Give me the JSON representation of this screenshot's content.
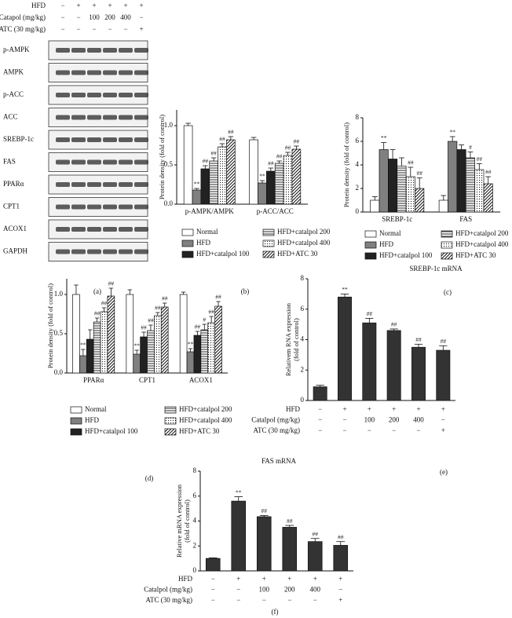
{
  "blot": {
    "conditions": [
      {
        "label": "HFD",
        "values": [
          "−",
          "+",
          "+",
          "+",
          "+",
          "+"
        ]
      },
      {
        "label": "Catapol (mg/kg)",
        "values": [
          "−",
          "−",
          "100",
          "200",
          "400",
          "−"
        ]
      },
      {
        "label": "ATC (30 mg/kg)",
        "values": [
          "−",
          "−",
          "−",
          "−",
          "−",
          "+"
        ]
      }
    ],
    "bands": [
      "p-AMPK",
      "AMPK",
      "p-ACC",
      "ACC",
      "SREBP-1c",
      "FAS",
      "PPARα",
      "CPT1",
      "ACOX1",
      "GAPDH"
    ],
    "panel_label": "(a)"
  },
  "chart_data": [
    {
      "type": "bar",
      "panel_label": "(b)",
      "ylabel": [
        "Protein density (fold of control)"
      ],
      "categories": [
        "p-AMPK/AMPK",
        "p-ACC/ACC"
      ],
      "ylim": [
        0,
        1.2
      ],
      "yticks": [
        {
          "value": 0,
          "label": "0.0"
        },
        {
          "value": 0.5,
          "label": "0.5"
        },
        {
          "value": 1,
          "label": "1.0"
        }
      ],
      "series": [
        {
          "name": "Normal",
          "color": "#ffffff",
          "values": [
            1.0,
            0.82
          ],
          "errors": [
            0.03,
            0.03
          ],
          "annotations": [
            null,
            null
          ]
        },
        {
          "name": "HFD",
          "color": "#808080",
          "values": [
            0.18,
            0.27
          ],
          "errors": [
            0.02,
            0.03
          ],
          "annotations": [
            "**",
            "**"
          ]
        },
        {
          "name": "HFD+catalpol 100",
          "color": "#222222",
          "values": [
            0.45,
            0.42
          ],
          "errors": [
            0.04,
            0.04
          ],
          "annotations": [
            "##",
            "##"
          ]
        },
        {
          "name": "HFD+catalpol 200",
          "color": "#ffffff",
          "pattern": "horizontal",
          "values": [
            0.55,
            0.52
          ],
          "errors": [
            0.04,
            0.03
          ],
          "annotations": [
            "##",
            "##"
          ]
        },
        {
          "name": "HFD+catalpol 400",
          "color": "#ffffff",
          "pattern": "dots",
          "values": [
            0.73,
            0.62
          ],
          "errors": [
            0.04,
            0.04
          ],
          "annotations": [
            "##",
            "##"
          ]
        },
        {
          "name": "HFD+ATC 30",
          "color": "#ffffff",
          "pattern": "diagonal",
          "values": [
            0.82,
            0.7
          ],
          "errors": [
            0.04,
            0.04
          ],
          "annotations": [
            "##",
            "##"
          ]
        }
      ]
    },
    {
      "type": "bar",
      "panel_label": "(c)",
      "ylabel": [
        "Protein density (fold of control)"
      ],
      "categories": [
        "SREBP-1c",
        "FAS"
      ],
      "ylim": [
        0,
        8
      ],
      "yticks": [
        0,
        2,
        4,
        6,
        8
      ],
      "series": [
        {
          "name": "Normal",
          "color": "#ffffff",
          "values": [
            1.0,
            1.0
          ],
          "errors": [
            0.3,
            0.4
          ],
          "annotations": [
            null,
            null
          ]
        },
        {
          "name": "HFD",
          "color": "#808080",
          "values": [
            5.3,
            6.0
          ],
          "errors": [
            0.6,
            0.4
          ],
          "annotations": [
            "**",
            "**"
          ]
        },
        {
          "name": "HFD+catalpol 100",
          "color": "#222222",
          "values": [
            4.5,
            5.3
          ],
          "errors": [
            0.8,
            0.4
          ],
          "annotations": [
            null,
            null
          ]
        },
        {
          "name": "HFD+catalpol 200",
          "color": "#ffffff",
          "pattern": "horizontal",
          "values": [
            3.9,
            4.6
          ],
          "errors": [
            0.7,
            0.5
          ],
          "annotations": [
            null,
            "#"
          ]
        },
        {
          "name": "HFD+catalpol 400",
          "color": "#ffffff",
          "pattern": "dots",
          "values": [
            3.0,
            3.6
          ],
          "errors": [
            0.8,
            0.5
          ],
          "annotations": [
            "##",
            "##"
          ]
        },
        {
          "name": "HFD+ATC 30",
          "color": "#ffffff",
          "pattern": "diagonal",
          "values": [
            2.0,
            2.4
          ],
          "errors": [
            0.9,
            0.6
          ],
          "annotations": [
            "##",
            "##"
          ]
        }
      ]
    },
    {
      "type": "bar",
      "panel_label": "(d)",
      "ylabel": [
        "Protein density (fold of control)"
      ],
      "categories": [
        "PPARα",
        "CPT1",
        "ACOX1"
      ],
      "ylim": [
        0,
        1.2
      ],
      "yticks": [
        {
          "value": 0,
          "label": "0.0"
        },
        {
          "value": 0.5,
          "label": "0.5"
        },
        {
          "value": 1,
          "label": "1.0"
        }
      ],
      "series": [
        {
          "name": "Normal",
          "color": "#ffffff",
          "values": [
            1.0,
            1.0,
            1.0
          ],
          "errors": [
            0.12,
            0.06,
            0.03
          ],
          "annotations": [
            null,
            null,
            null
          ]
        },
        {
          "name": "HFD",
          "color": "#808080",
          "values": [
            0.22,
            0.24,
            0.27
          ],
          "errors": [
            0.08,
            0.05,
            0.04
          ],
          "annotations": [
            "**",
            "**",
            "**"
          ]
        },
        {
          "name": "HFD+catalpol 100",
          "color": "#222222",
          "values": [
            0.43,
            0.46,
            0.48
          ],
          "errors": [
            0.12,
            0.06,
            0.05
          ],
          "annotations": [
            null,
            "##",
            "##"
          ]
        },
        {
          "name": "HFD+catalpol 200",
          "color": "#ffffff",
          "pattern": "horizontal",
          "values": [
            0.65,
            0.54,
            0.55
          ],
          "errors": [
            0.05,
            0.07,
            0.07
          ],
          "annotations": [
            "##",
            "##",
            "#"
          ]
        },
        {
          "name": "HFD+catalpol 400",
          "color": "#ffffff",
          "pattern": "dots",
          "values": [
            0.78,
            0.73,
            0.64
          ],
          "errors": [
            0.05,
            0.04,
            0.08
          ],
          "annotations": [
            "##",
            "##",
            "##"
          ]
        },
        {
          "name": "HFD+ATC 30",
          "color": "#ffffff",
          "pattern": "diagonal",
          "values": [
            0.98,
            0.84,
            0.85
          ],
          "errors": [
            0.1,
            0.05,
            0.06
          ],
          "annotations": [
            "##",
            "##",
            "##"
          ]
        }
      ]
    },
    {
      "type": "bar",
      "panel_label": "(e)",
      "title": "SREBP-1c mRNA",
      "ylabel": [
        "Relativem RNA expression",
        "(fold of control)"
      ],
      "color": "#333333",
      "values": [
        0.9,
        6.8,
        5.1,
        4.6,
        3.5,
        3.3
      ],
      "errors": [
        0.1,
        0.2,
        0.3,
        0.1,
        0.2,
        0.3
      ],
      "annotations": [
        null,
        "**",
        "##",
        "##",
        "##",
        "##"
      ],
      "ylim": [
        0,
        8
      ],
      "yticks": [
        0,
        2,
        4,
        6,
        8
      ],
      "conditions": [
        {
          "label": "HFD",
          "values": [
            "−",
            "+",
            "+",
            "+",
            "+",
            "+"
          ]
        },
        {
          "label": "Catalpol (mg/kg)",
          "values": [
            "−",
            "−",
            "100",
            "200",
            "400",
            "−"
          ]
        },
        {
          "label": "ATC (30 mg/kg)",
          "values": [
            "−",
            "−",
            "−",
            "−",
            "−",
            "+"
          ]
        }
      ]
    },
    {
      "type": "bar",
      "panel_label": "(f)",
      "title": "FAS mRNA",
      "ylabel": [
        "Relative mRNA expression",
        "(fold of control)"
      ],
      "color": "#333333",
      "values": [
        1.0,
        5.6,
        4.35,
        3.5,
        2.35,
        2.05
      ],
      "errors": [
        0.05,
        0.35,
        0.1,
        0.15,
        0.25,
        0.3
      ],
      "annotations": [
        null,
        "**",
        "##",
        "##",
        "##",
        "##"
      ],
      "ylim": [
        0,
        8
      ],
      "yticks": [
        0,
        2,
        4,
        6,
        8
      ],
      "conditions": [
        {
          "label": "HFD",
          "values": [
            "−",
            "+",
            "+",
            "+",
            "+",
            "+"
          ]
        },
        {
          "label": "Catalpol (mg/kg)",
          "values": [
            "−",
            "−",
            "100",
            "200",
            "400",
            "−"
          ]
        },
        {
          "label": "ATC (30 mg/kg)",
          "values": [
            "−",
            "−",
            "−",
            "−",
            "−",
            "+"
          ]
        }
      ]
    }
  ]
}
